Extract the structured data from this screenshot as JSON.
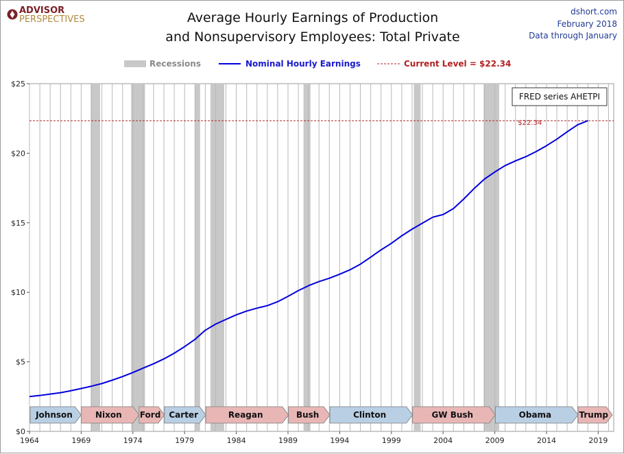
{
  "header": {
    "logo_line1": "ADVISOR",
    "logo_line2": "PERSPECTIVES",
    "title_line1": "Average Hourly Earnings of Production",
    "title_line2": "and Nonsupervisory Employees: Total Private",
    "source_site": "dshort.com",
    "source_date": "February 2018",
    "source_note": "Data through January"
  },
  "legend": {
    "recessions": "Recessions",
    "series": "Nominal Hourly Earnings",
    "current": "Current Level = $22.34"
  },
  "annotations": {
    "fred": "FRED series AHETPI",
    "current_label": "$22.34"
  },
  "colors": {
    "series": "#0000dd",
    "current": "#b22222",
    "recession": "#c8c8c8",
    "democrat": "#b9cfe4",
    "republican": "#e9b6b6"
  },
  "chart_data": {
    "type": "line",
    "title": "Average Hourly Earnings of Production and Nonsupervisory Employees: Total Private",
    "xlabel": "",
    "ylabel": "",
    "xlim": [
      1964.0,
      2020.5
    ],
    "ylim": [
      0,
      25
    ],
    "x_ticks": [
      1964,
      1969,
      1974,
      1979,
      1984,
      1989,
      1994,
      1999,
      2004,
      2009,
      2014,
      2019
    ],
    "y_ticks": [
      0,
      5,
      10,
      15,
      20,
      25
    ],
    "y_tick_labels": [
      "$0",
      "$5",
      "$10",
      "$15",
      "$20",
      "$25"
    ],
    "grid": "vertical",
    "current_level": 22.34,
    "series": [
      {
        "name": "Nominal Hourly Earnings",
        "x": [
          1964.0,
          1965.0,
          1966.0,
          1967.0,
          1968.0,
          1969.0,
          1970.0,
          1971.0,
          1972.0,
          1973.0,
          1974.0,
          1975.0,
          1976.0,
          1977.0,
          1978.0,
          1979.0,
          1980.0,
          1981.0,
          1982.0,
          1983.0,
          1984.0,
          1985.0,
          1986.0,
          1987.0,
          1988.0,
          1989.0,
          1990.0,
          1991.0,
          1992.0,
          1993.0,
          1994.0,
          1995.0,
          1996.0,
          1997.0,
          1998.0,
          1999.0,
          2000.0,
          2001.0,
          2002.0,
          2003.0,
          2004.0,
          2005.0,
          2006.0,
          2007.0,
          2008.0,
          2009.0,
          2010.0,
          2011.0,
          2012.0,
          2013.0,
          2014.0,
          2015.0,
          2016.0,
          2017.0,
          2018.0
        ],
        "y": [
          2.5,
          2.58,
          2.68,
          2.78,
          2.92,
          3.08,
          3.25,
          3.44,
          3.68,
          3.94,
          4.23,
          4.55,
          4.86,
          5.21,
          5.62,
          6.09,
          6.61,
          7.27,
          7.71,
          8.05,
          8.38,
          8.65,
          8.86,
          9.04,
          9.32,
          9.71,
          10.12,
          10.48,
          10.77,
          11.01,
          11.3,
          11.62,
          12.02,
          12.53,
          13.05,
          13.52,
          14.06,
          14.54,
          14.97,
          15.4,
          15.59,
          16.02,
          16.71,
          17.46,
          18.14,
          18.65,
          19.11,
          19.45,
          19.75,
          20.12,
          20.54,
          21.01,
          21.54,
          22.04,
          22.34
        ]
      }
    ],
    "recessions": [
      [
        1969.92,
        1970.83
      ],
      [
        1973.83,
        1975.17
      ],
      [
        1980.0,
        1980.5
      ],
      [
        1981.5,
        1982.83
      ],
      [
        1990.5,
        1991.17
      ],
      [
        2001.17,
        2001.83
      ],
      [
        2007.92,
        2009.42
      ]
    ],
    "presidents": [
      {
        "name": "Johnson",
        "start": 1964.0,
        "end": 1969.0,
        "party": "D"
      },
      {
        "name": "Nixon",
        "start": 1969.0,
        "end": 1974.6,
        "party": "R"
      },
      {
        "name": "Ford",
        "start": 1974.6,
        "end": 1977.05,
        "party": "R"
      },
      {
        "name": "Carter",
        "start": 1977.05,
        "end": 1981.05,
        "party": "D"
      },
      {
        "name": "Reagan",
        "start": 1981.05,
        "end": 1989.05,
        "party": "R"
      },
      {
        "name": "Bush",
        "start": 1989.05,
        "end": 1993.05,
        "party": "R"
      },
      {
        "name": "Clinton",
        "start": 1993.05,
        "end": 2001.05,
        "party": "D"
      },
      {
        "name": "GW Bush",
        "start": 2001.05,
        "end": 2009.05,
        "party": "R"
      },
      {
        "name": "Obama",
        "start": 2009.05,
        "end": 2017.05,
        "party": "D"
      },
      {
        "name": "Trump",
        "start": 2017.05,
        "end": 2020.9,
        "party": "R"
      }
    ]
  }
}
